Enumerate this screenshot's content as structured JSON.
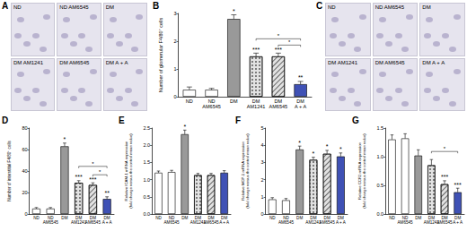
{
  "image_panels": [
    {
      "panel_label": "A",
      "images": [
        "ND",
        "ND AM6545",
        "DM",
        "DM AM1241",
        "DM AM6545",
        "DM A + A"
      ]
    },
    {
      "panel_label": "C",
      "images": [
        "ND",
        "ND AM6545",
        "DM",
        "DM AM1241",
        "DM AM6545",
        "DM A + A"
      ]
    }
  ],
  "chart_data": [
    {
      "panel_label": "B",
      "type": "bar",
      "y_label": "Number of glomerular F4/80⁺ cells",
      "categories": [
        "ND",
        "ND\nAM6545",
        "DM",
        "DM\nAM1241",
        "DM\nAM6545",
        "DM\nA + A"
      ],
      "values": [
        0.25,
        0.25,
        2.8,
        1.45,
        1.45,
        0.45
      ],
      "errors": [
        0.1,
        0.05,
        0.15,
        0.12,
        0.12,
        0.1
      ],
      "annotations": [
        null,
        null,
        "*",
        "***",
        "***",
        "**"
      ],
      "brackets": [
        {
          "from": "DM\nAM6545",
          "to": "DM\nA + A",
          "label": "*"
        },
        {
          "from": "DM\nAM1241",
          "to": "DM\nA + A",
          "label": "*"
        }
      ],
      "colors": [
        "#ffffff",
        "#ffffff",
        "#999999",
        "#e2e2e2",
        "#e2e2e2",
        "#3f51b5"
      ],
      "ylim": [
        0,
        3
      ],
      "yticks": [
        0,
        1,
        2,
        3
      ],
      "grid": false
    },
    {
      "panel_label": "D",
      "type": "bar",
      "y_label": "Number of interstitial F4/80⁺ cells",
      "categories": [
        "ND",
        "ND\nAM6545",
        "DM",
        "DM\nAM1241",
        "DM\nAM6545",
        "DM\nA + A"
      ],
      "values": [
        5,
        5,
        63,
        29,
        27,
        14
      ],
      "errors": [
        1,
        1,
        3,
        2,
        2,
        2
      ],
      "annotations": [
        null,
        null,
        "*",
        "***",
        "***",
        "**"
      ],
      "brackets": [
        {
          "from": "DM\nAM6545",
          "to": "DM\nA + A",
          "label": "*"
        },
        {
          "from": "DM\nAM1241",
          "to": "DM\nA + A",
          "label": "*"
        }
      ],
      "colors": [
        "#ffffff",
        "#ffffff",
        "#999999",
        "#e2e2e2",
        "#e2e2e2",
        "#3f51b5"
      ],
      "ylim": [
        0,
        80
      ],
      "yticks": [
        0,
        20,
        40,
        60,
        80
      ],
      "grid": false
    },
    {
      "panel_label": "E",
      "type": "bar",
      "y_label": "Relative ICAM-1 mRNA expression\n(fold change versus the control mean value)",
      "categories": [
        "ND",
        "ND\nAM6545",
        "DM",
        "DM\nAM1241",
        "DM\nAM6545",
        "DM\nA + A"
      ],
      "values": [
        1.2,
        1.22,
        2.32,
        1.13,
        1.13,
        1.2
      ],
      "errors": [
        0.05,
        0.05,
        0.12,
        0.05,
        0.05,
        0.06
      ],
      "annotations": [
        null,
        null,
        "*",
        null,
        null,
        null
      ],
      "brackets": [],
      "colors": [
        "#ffffff",
        "#ffffff",
        "#999999",
        "#e2e2e2",
        "#e2e2e2",
        "#3f51b5"
      ],
      "ylim": [
        0,
        2.5
      ],
      "yticks": [
        {
          "value": 0,
          "label": "0.0"
        },
        0.5,
        {
          "value": 1,
          "label": "1.0"
        },
        1.5,
        {
          "value": 2,
          "label": "2.0"
        },
        2.5
      ],
      "grid": false
    },
    {
      "panel_label": "F",
      "type": "bar",
      "y_label": "Relative MCP-1 mRNA expression\n(fold change versus the control mean value)",
      "categories": [
        "ND",
        "ND\nAM6545",
        "DM",
        "DM\nAM1241",
        "DM\nAM6545",
        "DM\nA + A"
      ],
      "values": [
        0.85,
        0.8,
        3.75,
        3.15,
        3.5,
        3.35
      ],
      "errors": [
        0.1,
        0.1,
        0.2,
        0.15,
        0.2,
        0.2
      ],
      "annotations": [
        null,
        null,
        "*",
        "*",
        "*",
        "*"
      ],
      "brackets": [],
      "colors": [
        "#ffffff",
        "#ffffff",
        "#999999",
        "#e2e2e2",
        "#e2e2e2",
        "#3f51b5"
      ],
      "ylim": [
        0,
        5
      ],
      "yticks": [
        0,
        1,
        2,
        3,
        4,
        5
      ],
      "grid": false
    },
    {
      "panel_label": "G",
      "type": "bar",
      "y_label": "Relative CCR2 mRNA expression\n(fold change versus the control mean value)",
      "categories": [
        "ND",
        "ND\nAM6545",
        "DM",
        "DM\nAM1241",
        "DM\nAM6545",
        "DM\nA + A"
      ],
      "values": [
        1.3,
        1.32,
        1.02,
        0.85,
        0.52,
        0.38
      ],
      "errors": [
        0.08,
        0.08,
        0.1,
        0.1,
        0.06,
        0.07
      ],
      "annotations": [
        null,
        null,
        null,
        null,
        "***",
        "***"
      ],
      "brackets": [
        {
          "from": "DM\nAM1241",
          "to": "DM\nA + A",
          "label": "*"
        }
      ],
      "colors": [
        "#ffffff",
        "#ffffff",
        "#999999",
        "#e2e2e2",
        "#e2e2e2",
        "#3f51b5"
      ],
      "ylim": [
        0,
        1.5
      ],
      "yticks": [
        {
          "value": 0,
          "label": "0.0"
        },
        0.5,
        {
          "value": 1,
          "label": "1.0"
        },
        1.5
      ],
      "grid": false
    }
  ]
}
